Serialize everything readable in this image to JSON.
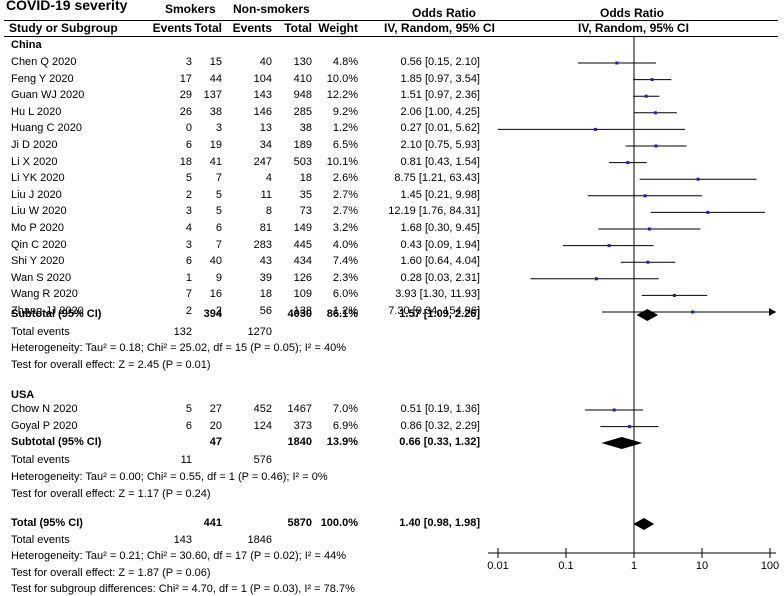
{
  "header": {
    "title": "COVID-19 severity",
    "smokers": "Smokers",
    "nonsmokers": "Non-smokers",
    "or_left": "Odds Ratio",
    "or_right": "Odds Ratio",
    "col_study": "Study or Subgroup",
    "col_events1": "Events",
    "col_total1": "Total",
    "col_events2": "Events",
    "col_total2": "Total",
    "col_weight": "Weight",
    "col_ci_left": "IV, Random, 95% CI",
    "col_ci_right": "IV, Random, 95% CI"
  },
  "groups": {
    "china": {
      "name": "China",
      "subtotal": {
        "label": "Subtotal (95% CI)",
        "total1": "394",
        "total2": "4030",
        "weight": "86.1%",
        "ci": "1.57 [1.09, 2.26]"
      },
      "total_events": {
        "label": "Total events",
        "e1": "132",
        "e2": "1270"
      },
      "heterogeneity": "Heterogeneity: Tau² = 0.18; Chi² = 25.02, df = 15 (P = 0.05); I² = 40%",
      "overall": "Test for overall effect: Z = 2.45 (P = 0.01)"
    },
    "usa": {
      "name": "USA",
      "subtotal": {
        "label": "Subtotal (95% CI)",
        "total1": "47",
        "total2": "1840",
        "weight": "13.9%",
        "ci": "0.66 [0.33, 1.32]"
      },
      "total_events": {
        "label": "Total events",
        "e1": "11",
        "e2": "576"
      },
      "heterogeneity": "Heterogeneity: Tau² = 0.00; Chi² = 0.55, df = 1 (P = 0.46); I² = 0%",
      "overall": "Test for overall effect: Z = 1.17 (P = 0.24)"
    }
  },
  "total": {
    "label": "Total (95% CI)",
    "total1": "441",
    "total2": "5870",
    "weight": "100.0%",
    "ci": "1.40 [0.98, 1.98]",
    "events_label": "Total events",
    "e1": "143",
    "e2": "1846",
    "heterogeneity": "Heterogeneity: Tau² = 0.21; Chi² = 30.60, df = 17 (P = 0.02); I² = 44%",
    "overall": "Test for overall effect: Z = 1.87 (P = 0.06)",
    "subgroup": "Test for subgroup differences: Chi² = 4.70, df = 1 (P = 0.03), I² = 78.7%"
  },
  "chart_data": {
    "type": "forest",
    "title": "COVID-19 severity",
    "x_scale": "log",
    "xlim": [
      0.01,
      100
    ],
    "x_ticks": [
      "0.01",
      "0.1",
      "1",
      "10",
      "100"
    ],
    "studies": [
      {
        "study": "Chen Q 2020",
        "e1": "3",
        "t1": "15",
        "e2": "40",
        "t2": "130",
        "weight": "4.8%",
        "ci": "0.56 [0.15, 2.10]",
        "or": 0.56,
        "lo": 0.15,
        "hi": 2.1,
        "arrow": false,
        "group": "china"
      },
      {
        "study": "Feng Y 2020",
        "e1": "17",
        "t1": "44",
        "e2": "104",
        "t2": "410",
        "weight": "10.0%",
        "ci": "1.85 [0.97, 3.54]",
        "or": 1.85,
        "lo": 0.97,
        "hi": 3.54,
        "arrow": false,
        "group": "china"
      },
      {
        "study": "Guan WJ 2020",
        "e1": "29",
        "t1": "137",
        "e2": "143",
        "t2": "948",
        "weight": "12.2%",
        "ci": "1.51 [0.97, 2.36]",
        "or": 1.51,
        "lo": 0.97,
        "hi": 2.36,
        "arrow": false,
        "group": "china"
      },
      {
        "study": "Hu L 2020",
        "e1": "26",
        "t1": "38",
        "e2": "146",
        "t2": "285",
        "weight": "9.2%",
        "ci": "2.06 [1.00, 4.25]",
        "or": 2.06,
        "lo": 1.0,
        "hi": 4.25,
        "arrow": false,
        "group": "china"
      },
      {
        "study": "Huang C 2020",
        "e1": "0",
        "t1": "3",
        "e2": "13",
        "t2": "38",
        "weight": "1.2%",
        "ci": "0.27 [0.01, 5.62]",
        "or": 0.27,
        "lo": 0.01,
        "hi": 5.62,
        "arrow": false,
        "group": "china"
      },
      {
        "study": "Ji D 2020",
        "e1": "6",
        "t1": "19",
        "e2": "34",
        "t2": "189",
        "weight": "6.5%",
        "ci": "2.10 [0.75, 5.93]",
        "or": 2.1,
        "lo": 0.75,
        "hi": 5.93,
        "arrow": false,
        "group": "china"
      },
      {
        "study": "Li X 2020",
        "e1": "18",
        "t1": "41",
        "e2": "247",
        "t2": "503",
        "weight": "10.1%",
        "ci": "0.81 [0.43, 1.54]",
        "or": 0.81,
        "lo": 0.43,
        "hi": 1.54,
        "arrow": false,
        "group": "china"
      },
      {
        "study": "Li YK 2020",
        "e1": "5",
        "t1": "7",
        "e2": "4",
        "t2": "18",
        "weight": "2.6%",
        "ci": "8.75 [1.21, 63.43]",
        "or": 8.75,
        "lo": 1.21,
        "hi": 63.43,
        "arrow": false,
        "group": "china"
      },
      {
        "study": "Liu J 2020",
        "e1": "2",
        "t1": "5",
        "e2": "11",
        "t2": "35",
        "weight": "2.7%",
        "ci": "1.45 [0.21, 9.98]",
        "or": 1.45,
        "lo": 0.21,
        "hi": 9.98,
        "arrow": false,
        "group": "china"
      },
      {
        "study": "Liu W 2020",
        "e1": "3",
        "t1": "5",
        "e2": "8",
        "t2": "73",
        "weight": "2.7%",
        "ci": "12.19 [1.76, 84.31]",
        "or": 12.19,
        "lo": 1.76,
        "hi": 84.31,
        "arrow": false,
        "group": "china"
      },
      {
        "study": "Mo P 2020",
        "e1": "4",
        "t1": "6",
        "e2": "81",
        "t2": "149",
        "weight": "3.2%",
        "ci": "1.68 [0.30, 9.45]",
        "or": 1.68,
        "lo": 0.3,
        "hi": 9.45,
        "arrow": false,
        "group": "china"
      },
      {
        "study": "Qin C 2020",
        "e1": "3",
        "t1": "7",
        "e2": "283",
        "t2": "445",
        "weight": "4.0%",
        "ci": "0.43 [0.09, 1.94]",
        "or": 0.43,
        "lo": 0.09,
        "hi": 1.94,
        "arrow": false,
        "group": "china"
      },
      {
        "study": "Shi Y 2020",
        "e1": "6",
        "t1": "40",
        "e2": "43",
        "t2": "434",
        "weight": "7.4%",
        "ci": "1.60 [0.64, 4.04]",
        "or": 1.6,
        "lo": 0.64,
        "hi": 4.04,
        "arrow": false,
        "group": "china"
      },
      {
        "study": "Wan S 2020",
        "e1": "1",
        "t1": "9",
        "e2": "39",
        "t2": "126",
        "weight": "2.3%",
        "ci": "0.28 [0.03, 2.31]",
        "or": 0.28,
        "lo": 0.03,
        "hi": 2.31,
        "arrow": false,
        "group": "china"
      },
      {
        "study": "Wang R 2020",
        "e1": "7",
        "t1": "16",
        "e2": "18",
        "t2": "109",
        "weight": "6.0%",
        "ci": "3.93 [1.30, 11.93]",
        "or": 3.93,
        "lo": 1.3,
        "hi": 11.93,
        "arrow": false,
        "group": "china"
      },
      {
        "study": "Zhang JJ 2020",
        "e1": "2",
        "t1": "2",
        "e2": "56",
        "t2": "138",
        "weight": "1.2%",
        "ci": "7.30 [0.34, 154.96]",
        "or": 7.3,
        "lo": 0.34,
        "hi": 154.96,
        "arrow": true,
        "group": "china"
      },
      {
        "study": "Chow N 2020",
        "e1": "5",
        "t1": "27",
        "e2": "452",
        "t2": "1467",
        "weight": "7.0%",
        "ci": "0.51 [0.19, 1.36]",
        "or": 0.51,
        "lo": 0.19,
        "hi": 1.36,
        "arrow": false,
        "group": "usa"
      },
      {
        "study": "Goyal P 2020",
        "e1": "6",
        "t1": "20",
        "e2": "124",
        "t2": "373",
        "weight": "6.9%",
        "ci": "0.86 [0.32, 2.29]",
        "or": 0.86,
        "lo": 0.32,
        "hi": 2.29,
        "arrow": false,
        "group": "usa"
      }
    ],
    "diamonds": [
      {
        "name": "China subtotal",
        "or": 1.57,
        "lo": 1.09,
        "hi": 2.26
      },
      {
        "name": "USA subtotal",
        "or": 0.66,
        "lo": 0.33,
        "hi": 1.32
      },
      {
        "name": "Overall total",
        "or": 1.4,
        "lo": 0.98,
        "hi": 1.98
      }
    ],
    "colors": {
      "marker": "#1a1ad6",
      "line": "#000000"
    }
  }
}
